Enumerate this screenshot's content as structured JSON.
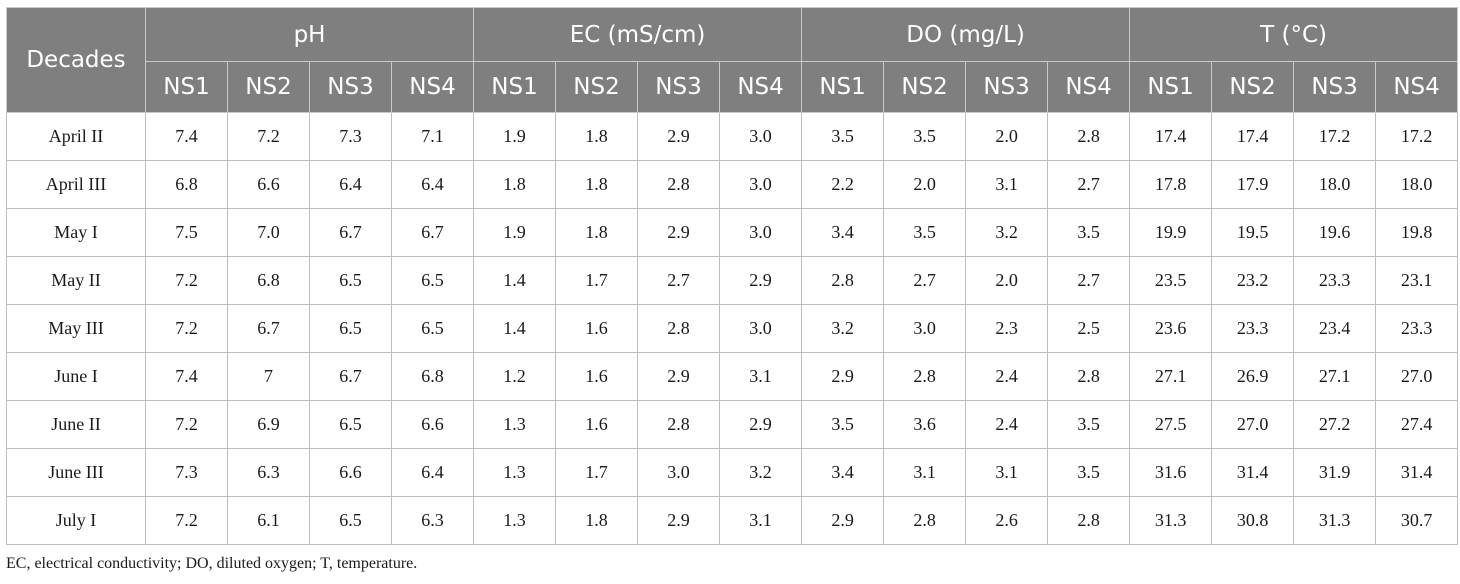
{
  "table": {
    "corner_header": "Decades",
    "groups": [
      {
        "label": "pH",
        "subs": [
          "NS1",
          "NS2",
          "NS3",
          "NS4"
        ]
      },
      {
        "label": "EC (mS/cm)",
        "subs": [
          "NS1",
          "NS2",
          "NS3",
          "NS4"
        ]
      },
      {
        "label": "DO (mg/L)",
        "subs": [
          "NS1",
          "NS2",
          "NS3",
          "NS4"
        ]
      },
      {
        "label": "T (°C)",
        "subs": [
          "NS1",
          "NS2",
          "NS3",
          "NS4"
        ]
      }
    ],
    "rows": [
      {
        "decade": "April II",
        "values": [
          "7.4",
          "7.2",
          "7.3",
          "7.1",
          "1.9",
          "1.8",
          "2.9",
          "3.0",
          "3.5",
          "3.5",
          "2.0",
          "2.8",
          "17.4",
          "17.4",
          "17.2",
          "17.2"
        ]
      },
      {
        "decade": "April III",
        "values": [
          "6.8",
          "6.6",
          "6.4",
          "6.4",
          "1.8",
          "1.8",
          "2.8",
          "3.0",
          "2.2",
          "2.0",
          "3.1",
          "2.7",
          "17.8",
          "17.9",
          "18.0",
          "18.0"
        ]
      },
      {
        "decade": "May I",
        "values": [
          "7.5",
          "7.0",
          "6.7",
          "6.7",
          "1.9",
          "1.8",
          "2.9",
          "3.0",
          "3.4",
          "3.5",
          "3.2",
          "3.5",
          "19.9",
          "19.5",
          "19.6",
          "19.8"
        ]
      },
      {
        "decade": "May II",
        "values": [
          "7.2",
          "6.8",
          "6.5",
          "6.5",
          "1.4",
          "1.7",
          "2.7",
          "2.9",
          "2.8",
          "2.7",
          "2.0",
          "2.7",
          "23.5",
          "23.2",
          "23.3",
          "23.1"
        ]
      },
      {
        "decade": "May III",
        "values": [
          "7.2",
          "6.7",
          "6.5",
          "6.5",
          "1.4",
          "1.6",
          "2.8",
          "3.0",
          "3.2",
          "3.0",
          "2.3",
          "2.5",
          "23.6",
          "23.3",
          "23.4",
          "23.3"
        ]
      },
      {
        "decade": "June I",
        "values": [
          "7.4",
          "7",
          "6.7",
          "6.8",
          "1.2",
          "1.6",
          "2.9",
          "3.1",
          "2.9",
          "2.8",
          "2.4",
          "2.8",
          "27.1",
          "26.9",
          "27.1",
          "27.0"
        ]
      },
      {
        "decade": "June II",
        "values": [
          "7.2",
          "6.9",
          "6.5",
          "6.6",
          "1.3",
          "1.6",
          "2.8",
          "2.9",
          "3.5",
          "3.6",
          "2.4",
          "3.5",
          "27.5",
          "27.0",
          "27.2",
          "27.4"
        ]
      },
      {
        "decade": "June III",
        "values": [
          "7.3",
          "6.3",
          "6.6",
          "6.4",
          "1.3",
          "1.7",
          "3.0",
          "3.2",
          "3.4",
          "3.1",
          "3.1",
          "3.5",
          "31.6",
          "31.4",
          "31.9",
          "31.4"
        ]
      },
      {
        "decade": "July I",
        "values": [
          "7.2",
          "6.1",
          "6.5",
          "6.3",
          "1.3",
          "1.8",
          "2.9",
          "3.1",
          "2.9",
          "2.8",
          "2.6",
          "2.8",
          "31.3",
          "30.8",
          "31.3",
          "30.7"
        ]
      }
    ]
  },
  "footnote": "EC, electrical conductivity; DO, diluted oxygen; T, temperature.",
  "colors": {
    "header_bg": "#7f7f7f",
    "header_text": "#ffffff",
    "body_text": "#1a1a1a",
    "grid": "#bdbdbd"
  }
}
